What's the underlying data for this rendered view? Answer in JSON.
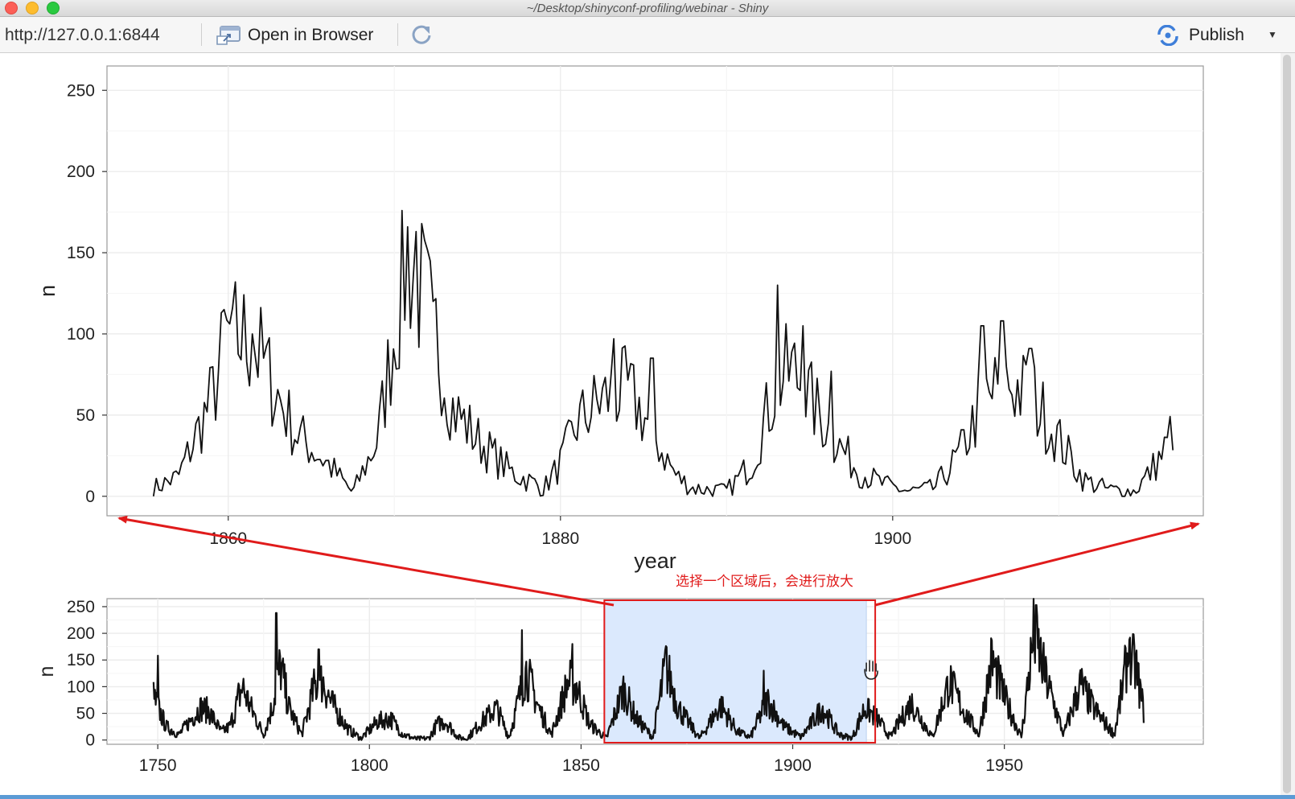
{
  "window": {
    "title": "~/Desktop/shinyconf-profiling/webinar - Shiny"
  },
  "toolbar": {
    "url": "http://127.0.0.1:6844",
    "open_in_browser_label": "Open in Browser",
    "publish_label": "Publish",
    "icons": [
      "browser-icon",
      "reload-icon",
      "publish-icon",
      "chevron-down-icon"
    ]
  },
  "annotation": {
    "text": "选择一个区域后，会进行放大",
    "color": "#e01b1b"
  },
  "chart_data": [
    {
      "type": "line",
      "role": "detail",
      "xlabel": "year",
      "ylabel": "n",
      "xlim": [
        1852.7,
        1918.7
      ],
      "ylim": [
        -12,
        265
      ],
      "xticks": [
        1860,
        1880,
        1900
      ],
      "yticks": [
        0,
        50,
        100,
        150,
        200,
        250
      ],
      "grid": true,
      "series_color": "#111111",
      "envelope": [
        [
          1855.5,
          5
        ],
        [
          1857,
          12
        ],
        [
          1859,
          60
        ],
        [
          1860,
          100
        ],
        [
          1861.5,
          95
        ],
        [
          1864,
          40
        ],
        [
          1866,
          20
        ],
        [
          1867.5,
          2
        ],
        [
          1869,
          35
        ],
        [
          1870.2,
          115
        ],
        [
          1870.8,
          150
        ],
        [
          1872.5,
          100
        ],
        [
          1873.5,
          55
        ],
        [
          1875,
          35
        ],
        [
          1877,
          15
        ],
        [
          1879,
          5
        ],
        [
          1880,
          20
        ],
        [
          1881,
          45
        ],
        [
          1882.5,
          60
        ],
        [
          1884,
          65
        ],
        [
          1885,
          50
        ],
        [
          1886,
          30
        ],
        [
          1887,
          12
        ],
        [
          1888,
          5
        ],
        [
          1890,
          3
        ],
        [
          1891.5,
          20
        ],
        [
          1893,
          70
        ],
        [
          1894,
          78
        ],
        [
          1895,
          60
        ],
        [
          1896.5,
          35
        ],
        [
          1898,
          15
        ],
        [
          1899.5,
          7
        ],
        [
          1901,
          3
        ],
        [
          1902.5,
          5
        ],
        [
          1904,
          25
        ],
        [
          1905.5,
          60
        ],
        [
          1907,
          70
        ],
        [
          1908.5,
          60
        ],
        [
          1910,
          35
        ],
        [
          1911.5,
          10
        ],
        [
          1913,
          4
        ],
        [
          1914.5,
          3
        ],
        [
          1915.3,
          12
        ],
        [
          1916.5,
          30
        ],
        [
          1917,
          50
        ]
      ],
      "peaks": [
        [
          1859.7,
          115
        ],
        [
          1860.2,
          116
        ],
        [
          1861.5,
          100
        ],
        [
          1870.5,
          176
        ],
        [
          1871.3,
          163
        ],
        [
          1872.3,
          120
        ],
        [
          1883.2,
          97
        ],
        [
          1885.5,
          85
        ],
        [
          1893.1,
          130
        ],
        [
          1894.6,
          105
        ],
        [
          1896.3,
          77
        ],
        [
          1905.4,
          105
        ],
        [
          1906.6,
          108
        ],
        [
          1908.3,
          91
        ],
        [
          1917.1,
          68
        ]
      ]
    },
    {
      "type": "line",
      "role": "overview",
      "xlabel": "",
      "ylabel": "n",
      "xlim": [
        1738,
        1997
      ],
      "ylim": [
        -8,
        265
      ],
      "xticks": [
        1750,
        1800,
        1850,
        1900,
        1950
      ],
      "yticks": [
        0,
        50,
        100,
        150,
        200,
        250
      ],
      "grid": true,
      "series_color": "#111111",
      "brush": {
        "x0": 1855.5,
        "x1": 1917.4,
        "fill": "#dbe9fd"
      },
      "envelope": [
        [
          1749,
          80
        ],
        [
          1752,
          25
        ],
        [
          1755,
          10
        ],
        [
          1757,
          30
        ],
        [
          1760,
          60
        ],
        [
          1762,
          55
        ],
        [
          1765,
          15
        ],
        [
          1767,
          25
        ],
        [
          1770,
          100
        ],
        [
          1772,
          60
        ],
        [
          1775,
          10
        ],
        [
          1777,
          60
        ],
        [
          1779,
          140
        ],
        [
          1781,
          60
        ],
        [
          1784,
          10
        ],
        [
          1787,
          100
        ],
        [
          1789,
          110
        ],
        [
          1791,
          70
        ],
        [
          1795,
          20
        ],
        [
          1798,
          3
        ],
        [
          1802,
          35
        ],
        [
          1805,
          40
        ],
        [
          1808,
          10
        ],
        [
          1811,
          2
        ],
        [
          1814,
          3
        ],
        [
          1816,
          30
        ],
        [
          1818,
          35
        ],
        [
          1821,
          5
        ],
        [
          1823,
          2
        ],
        [
          1826,
          30
        ],
        [
          1830,
          60
        ],
        [
          1833,
          5
        ],
        [
          1837,
          130
        ],
        [
          1840,
          60
        ],
        [
          1843,
          10
        ],
        [
          1847,
          110
        ],
        [
          1849,
          100
        ],
        [
          1852,
          30
        ],
        [
          1856,
          3
        ],
        [
          1860,
          95
        ],
        [
          1863,
          40
        ],
        [
          1867,
          5
        ],
        [
          1870,
          140
        ],
        [
          1873,
          60
        ],
        [
          1878,
          3
        ],
        [
          1883,
          65
        ],
        [
          1887,
          15
        ],
        [
          1890,
          5
        ],
        [
          1894,
          75
        ],
        [
          1898,
          25
        ],
        [
          1902,
          5
        ],
        [
          1907,
          60
        ],
        [
          1911,
          10
        ],
        [
          1914,
          3
        ],
        [
          1917,
          60
        ],
        [
          1920,
          40
        ],
        [
          1923,
          5
        ],
        [
          1928,
          70
        ],
        [
          1933,
          5
        ],
        [
          1937,
          110
        ],
        [
          1940,
          60
        ],
        [
          1944,
          10
        ],
        [
          1947,
          150
        ],
        [
          1950,
          80
        ],
        [
          1954,
          5
        ],
        [
          1957,
          200
        ],
        [
          1960,
          110
        ],
        [
          1964,
          10
        ],
        [
          1968,
          105
        ],
        [
          1971,
          60
        ],
        [
          1976,
          10
        ],
        [
          1979,
          150
        ],
        [
          1981,
          140
        ],
        [
          1983,
          50
        ]
      ],
      "peaks": [
        [
          1750,
          158
        ],
        [
          1769,
          106
        ],
        [
          1778,
          238
        ],
        [
          1788,
          170
        ],
        [
          1836,
          206
        ],
        [
          1848,
          180
        ],
        [
          1870,
          176
        ],
        [
          1893.1,
          130
        ],
        [
          1957.5,
          253
        ],
        [
          1979.5,
          188
        ]
      ]
    }
  ]
}
